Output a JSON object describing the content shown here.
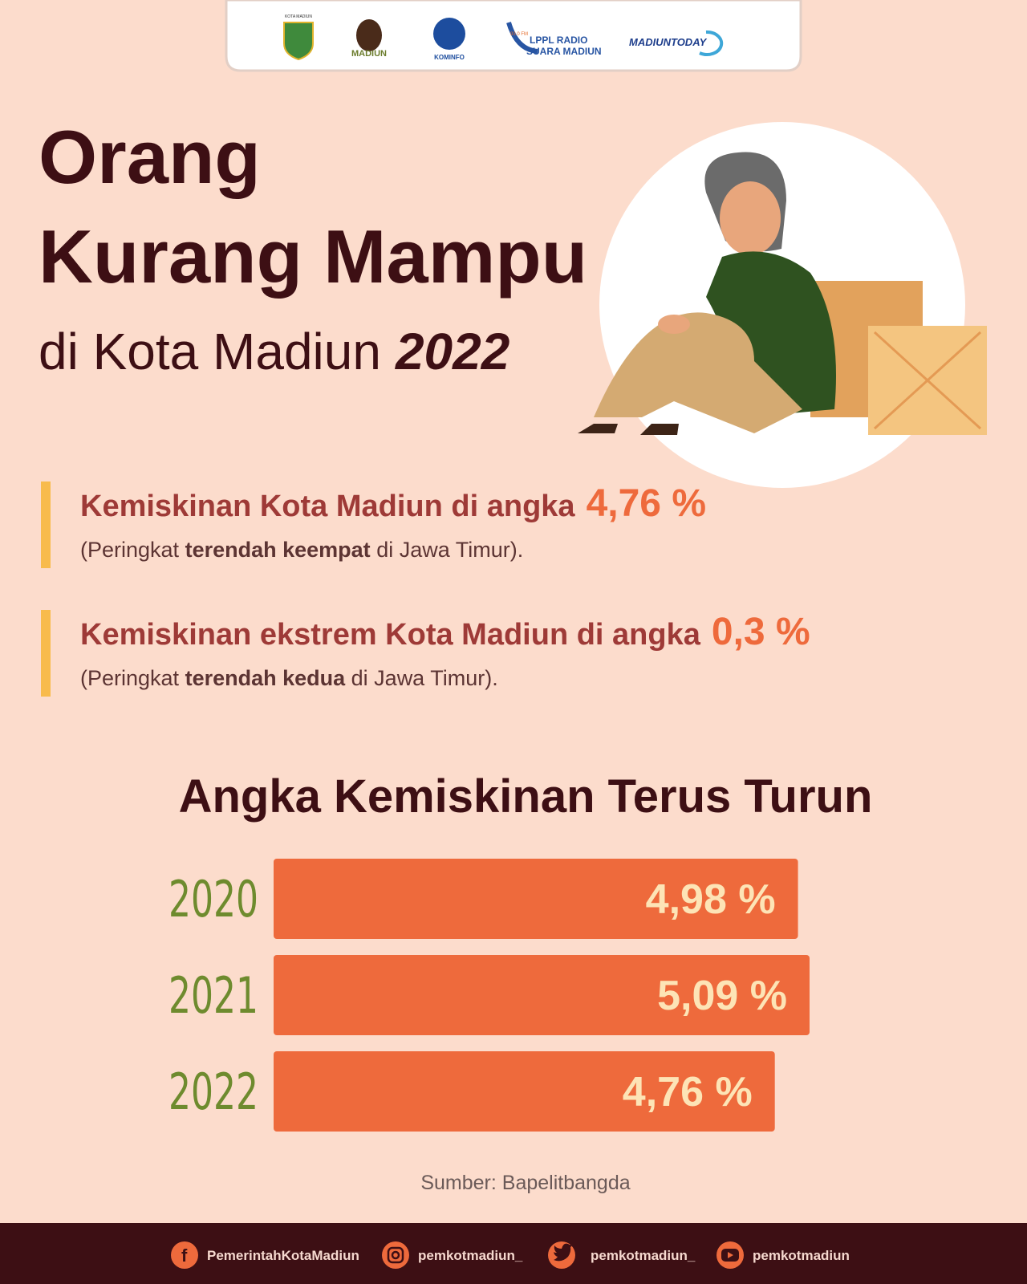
{
  "header": {
    "logos": [
      "KOTA MADIUN",
      "MADIUN",
      "KOMINFO",
      "93.0 FM",
      "LPPL RADIO",
      "SUARA MADIUN",
      "MADIUNTODAY"
    ]
  },
  "title": {
    "line1": "Orang",
    "line2": "Kurang Mampu",
    "line3": "di Kota Madiun",
    "year": "2022"
  },
  "stats": [
    {
      "headline": "Kemiskinan Kota Madiun di angka",
      "value": "4,76 %",
      "note_prefix": "(Peringkat",
      "note_bold": "terendah keempat",
      "note_suffix": "di Jawa Timur)."
    },
    {
      "headline": "Kemiskinan ekstrem Kota Madiun di angka",
      "value": "0,3 %",
      "note_prefix": "(Peringkat",
      "note_bold": "terendah kedua",
      "note_suffix": "di Jawa Timur)."
    }
  ],
  "chart_data": {
    "type": "bar",
    "orientation": "horizontal",
    "title": "Angka Kemiskinan Terus Turun",
    "categories": [
      "2020",
      "2021",
      "2022"
    ],
    "values": [
      4.98,
      5.09,
      4.76
    ],
    "value_labels": [
      "4,98 %",
      "5,09 %",
      "4,76 %"
    ],
    "color": "#ee6a3c"
  },
  "source": "Sumber: Bapelitbangda",
  "footer": {
    "facebook": "PemerintahKotaMadiun",
    "instagram": "pemkotmadiun_",
    "twitter": "pemkotmadiun_",
    "youtube": "pemkotmadiun"
  }
}
